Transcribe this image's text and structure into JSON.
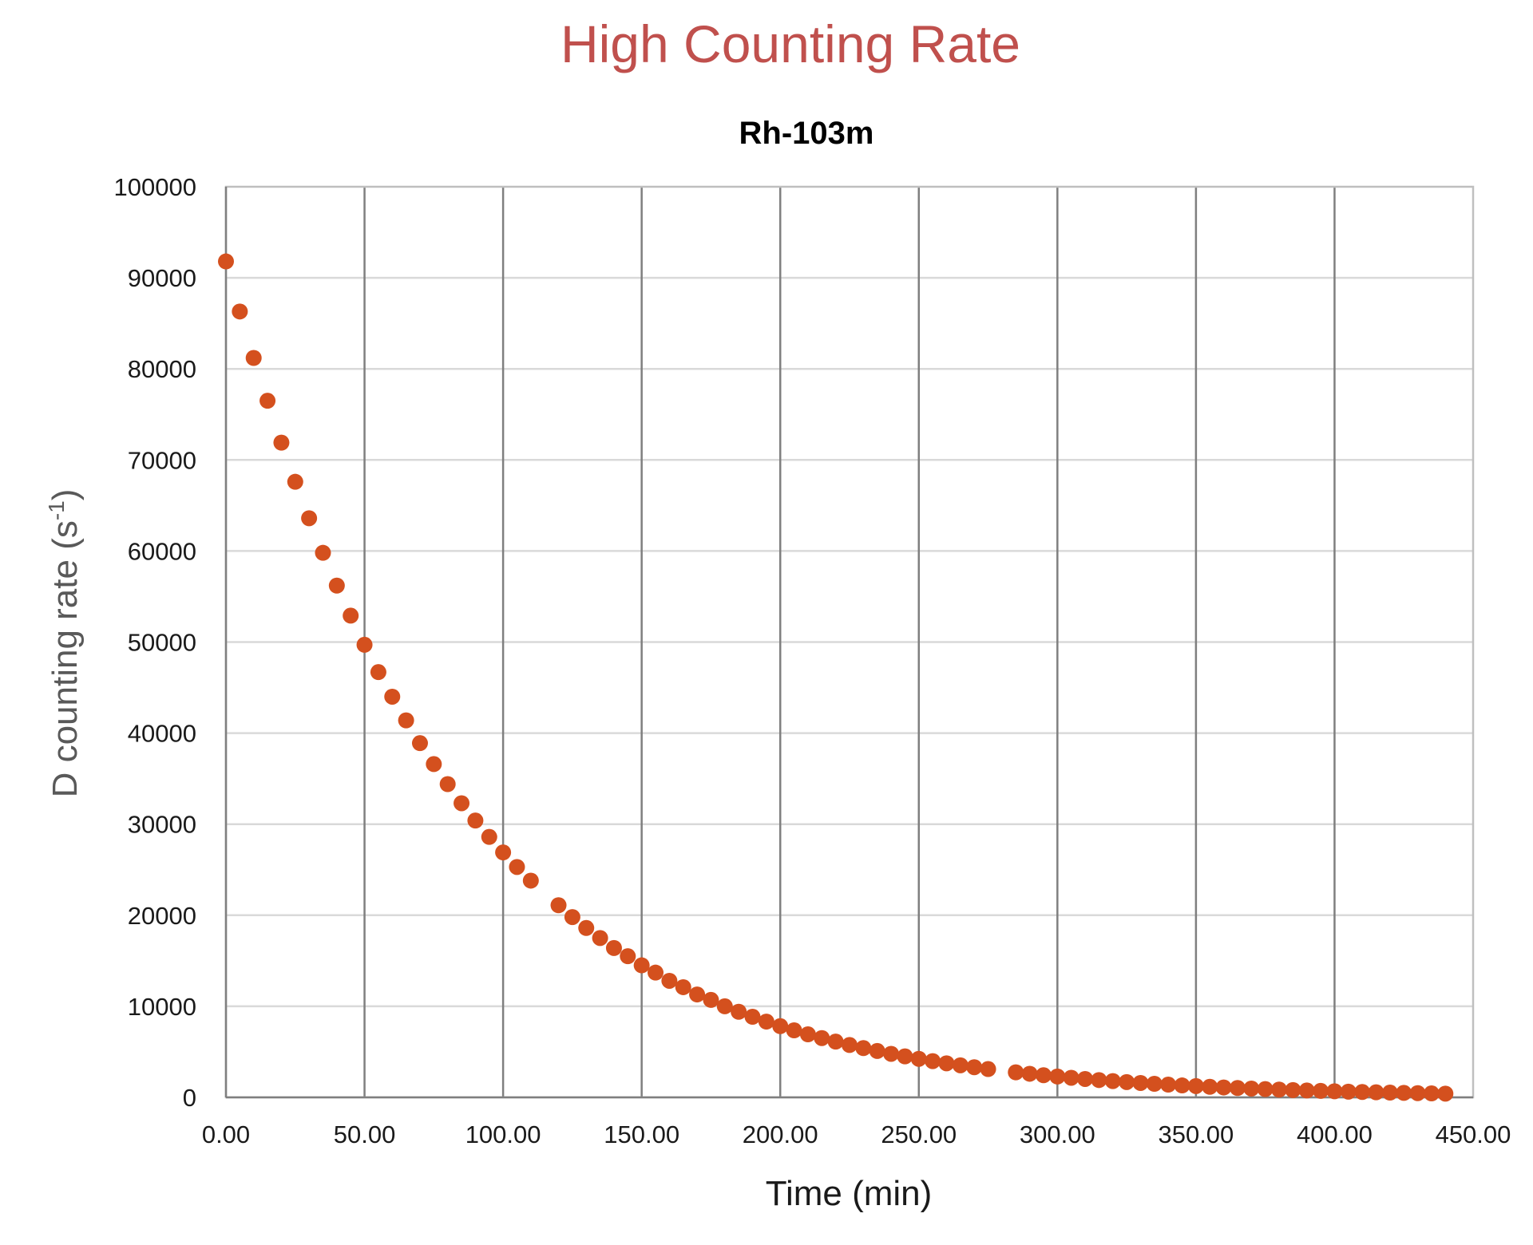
{
  "chart_data": {
    "type": "scatter",
    "title": "High Counting Rate",
    "subtitle": "Rh-103m",
    "xlabel": "Time (min)",
    "ylabel": "D counting rate (s-1)",
    "ylabel_parts": {
      "main": "D counting rate (s",
      "sup": "-1",
      "end": ")"
    },
    "xlim": [
      0,
      450
    ],
    "ylim": [
      0,
      100000
    ],
    "x_ticks": [
      "0.00",
      "50.00",
      "100.00",
      "150.00",
      "200.00",
      "250.00",
      "300.00",
      "350.00",
      "400.00",
      "450.00"
    ],
    "y_ticks": [
      "0",
      "10000",
      "20000",
      "30000",
      "40000",
      "50000",
      "60000",
      "70000",
      "80000",
      "90000",
      "100000"
    ],
    "grid": {
      "horizontal": true,
      "vertical": true
    },
    "marker_color": "#d4501e",
    "title_color": "#c0504d",
    "series": [
      {
        "x": [
          0,
          5,
          10,
          15,
          20,
          25,
          30,
          35,
          40,
          45,
          50,
          55,
          60,
          65,
          70,
          75,
          80,
          85,
          90,
          95,
          100,
          105,
          110,
          120,
          125,
          130,
          135,
          140,
          145,
          150,
          155,
          160,
          165,
          170,
          175,
          180,
          185,
          190,
          195,
          200,
          205,
          210,
          215,
          220,
          225,
          230,
          235,
          240,
          245,
          250,
          255,
          260,
          265,
          270,
          275,
          285,
          290,
          295,
          300,
          305,
          310,
          315,
          320,
          325,
          330,
          335,
          340,
          345,
          350,
          355,
          360,
          365,
          370,
          375,
          380,
          385,
          390,
          395,
          400,
          405,
          410,
          415,
          420,
          425,
          430,
          435,
          440
        ],
        "y": [
          91800,
          86300,
          81200,
          76500,
          71900,
          67600,
          63600,
          59800,
          56200,
          52900,
          49700,
          46700,
          44000,
          41400,
          38900,
          36600,
          34400,
          32300,
          30400,
          28600,
          26900,
          25300,
          23800,
          21100,
          19800,
          18600,
          17500,
          16400,
          15500,
          14500,
          13700,
          12800,
          12100,
          11300,
          10700,
          10000,
          9400,
          8850,
          8320,
          7820,
          7360,
          6920,
          6510,
          6120,
          5750,
          5410,
          5090,
          4780,
          4500,
          4230,
          3980,
          3740,
          3520,
          3310,
          3110,
          2750,
          2590,
          2430,
          2290,
          2150,
          2020,
          1900,
          1790,
          1680,
          1580,
          1490,
          1400,
          1310,
          1240,
          1160,
          1090,
          1030,
          966,
          908,
          854,
          803,
          755,
          710,
          668,
          628,
          590,
          555,
          522,
          491,
          462,
          434,
          408
        ]
      }
    ]
  }
}
